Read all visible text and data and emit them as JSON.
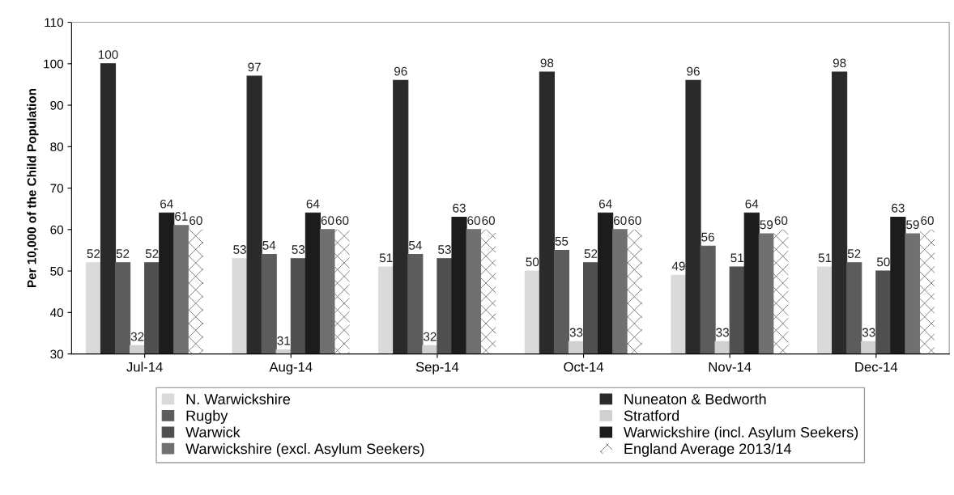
{
  "chart_data": {
    "type": "bar",
    "ylabel": "Per 10,000 of the Child Population",
    "categories": [
      "Jul-14",
      "Aug-14",
      "Sep-14",
      "Oct-14",
      "Nov-14",
      "Dec-14"
    ],
    "series": [
      {
        "name": "N. Warwickshire",
        "color": "#dadada",
        "values": [
          52,
          53,
          51,
          50,
          49,
          51
        ]
      },
      {
        "name": "Nuneaton & Bedworth",
        "color": "#2a2a2a",
        "values": [
          100,
          97,
          96,
          98,
          96,
          98
        ]
      },
      {
        "name": "Rugby",
        "color": "#5c5c5c",
        "values": [
          52,
          54,
          54,
          55,
          56,
          52
        ]
      },
      {
        "name": "Stratford",
        "color": "#d0d0d0",
        "values": [
          32,
          31,
          32,
          33,
          33,
          33
        ]
      },
      {
        "name": "Warwick",
        "color": "#4f4f4f",
        "values": [
          52,
          53,
          53,
          52,
          51,
          50
        ]
      },
      {
        "name": "Warwickshire (incl. Asylum Seekers)",
        "color": "#1c1c1c",
        "values": [
          64,
          64,
          63,
          64,
          64,
          63
        ]
      },
      {
        "name": "Warwickshire (excl. Asylum Seekers)",
        "color": "#707070",
        "values": [
          61,
          60,
          60,
          60,
          59,
          59
        ]
      },
      {
        "name": "England Average 2013/14",
        "color": "#ffffff",
        "values": [
          60,
          60,
          60,
          60,
          60,
          60
        ]
      }
    ],
    "ylim": [
      30,
      110
    ],
    "yticks": [
      30,
      40,
      50,
      60,
      70,
      80,
      90,
      100,
      110
    ],
    "data_labels": true,
    "grid": false,
    "legend": "bottom"
  }
}
